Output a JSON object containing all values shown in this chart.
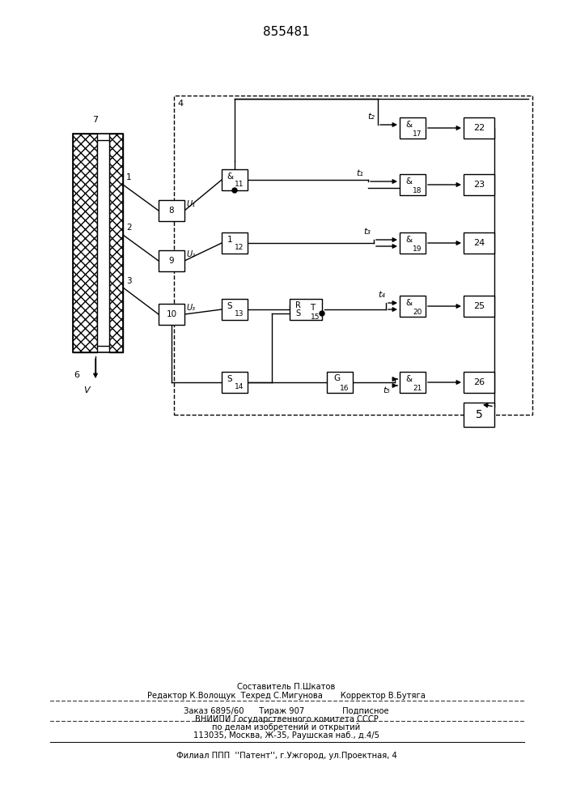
{
  "title": "855481",
  "bg_color": "#ffffff",
  "fig_width": 7.07,
  "fig_height": 10.0,
  "footer": {
    "line1": "Составитель П.Шкатов",
    "line2": "Редактор К.Волощук  Техред С.Мигунова       Корректор В.Бутяга",
    "line3": "Заказ 6895/60      Тираж 907               Подписное",
    "line4": "ВНИИПИ Государственного комитета СССР",
    "line5": "по делам изобретений и открытий",
    "line6": "113035, Москва, Ж-35, Раушская наб., д.4/5",
    "line7": "Филиал ППП  ''Патент'', г.Ужгород, ул.Проектная, 4"
  }
}
